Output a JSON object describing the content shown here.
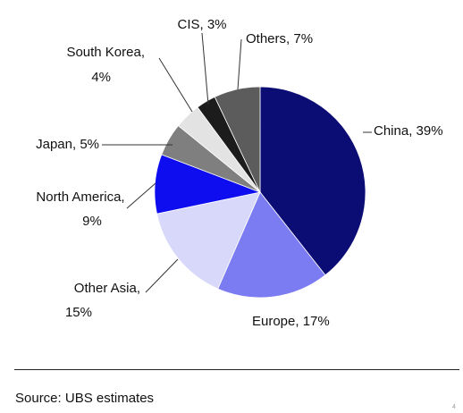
{
  "chart_data": {
    "type": "pie",
    "slices": [
      {
        "label": "China, 39%",
        "value": 39,
        "color": "#0c0c75"
      },
      {
        "label": "Europe, 17%",
        "value": 17,
        "color": "#7b7bf2"
      },
      {
        "label": "Other Asia, 15%",
        "value": 15,
        "color": "#d8d8fb"
      },
      {
        "label": "North America, 9%",
        "value": 9,
        "color": "#0d0df0"
      },
      {
        "label": "Japan, 5%",
        "value": 5,
        "color": "#7f7f7f"
      },
      {
        "label": "South Korea, 4%",
        "value": 4,
        "color": "#e3e3e3"
      },
      {
        "label": "CIS, 3%",
        "value": 3,
        "color": "#1c1c1c"
      },
      {
        "label": "Others, 7%",
        "value": 7,
        "color": "#5c5c5c"
      }
    ],
    "start": "12 o'clock",
    "direction": "clockwise"
  },
  "footer": {
    "source": "Source: UBS estimates",
    "corner_mark": "4"
  }
}
